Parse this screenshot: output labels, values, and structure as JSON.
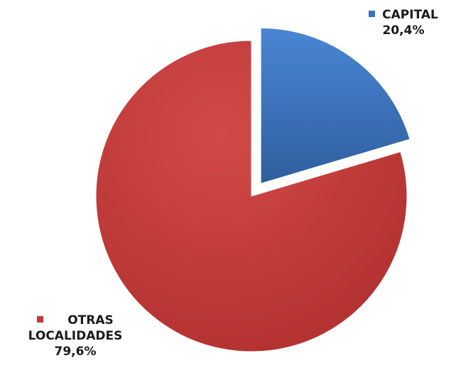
{
  "chart_data": {
    "type": "pie",
    "slices": [
      {
        "name": "CAPITAL",
        "value": 20.4,
        "value_label": "20,4%",
        "color": "#3a70c0",
        "exploded": true
      },
      {
        "name": "OTRAS LOCALIDADES",
        "name_lines": [
          "OTRAS",
          "LOCALIDADES"
        ],
        "value": 79.6,
        "value_label": "79,6%",
        "color": "#c0393a",
        "exploded": false
      }
    ],
    "title": "",
    "start_angle_deg": 0,
    "direction": "clockwise"
  }
}
